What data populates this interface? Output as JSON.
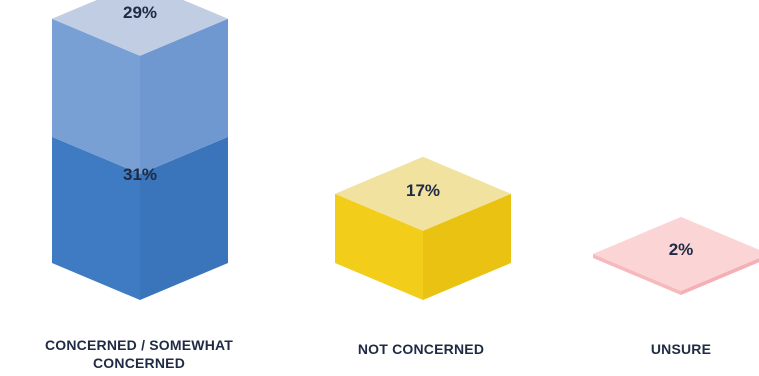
{
  "chart_data": {
    "type": "bar",
    "style": "isometric-stacked-3d",
    "categories": [
      "CONCERNED / SOMEWHAT CONCERNED",
      "NOT CONCERNED",
      "UNSURE"
    ],
    "series": [
      {
        "values": [
          31,
          17,
          2
        ]
      },
      {
        "values": [
          29,
          0,
          0
        ]
      }
    ],
    "labels": [
      "31%",
      "29%",
      "17%",
      "2%"
    ],
    "colors": {
      "concerned_lower_left": "#3e7bc2",
      "concerned_lower_right": "#3a74ba",
      "concerned_upper_left": "#78a0d5",
      "concerned_upper_right": "#6f98d0",
      "concerned_top": "#c1cde2",
      "not_concerned_top": "#f1e2a0",
      "not_concerned_left": "#f2cd1a",
      "not_concerned_right": "#eac312",
      "unsure_top": "#fbd5d6",
      "unsure_left": "#f6b9bc",
      "unsure_right": "#f4b0b4"
    }
  }
}
